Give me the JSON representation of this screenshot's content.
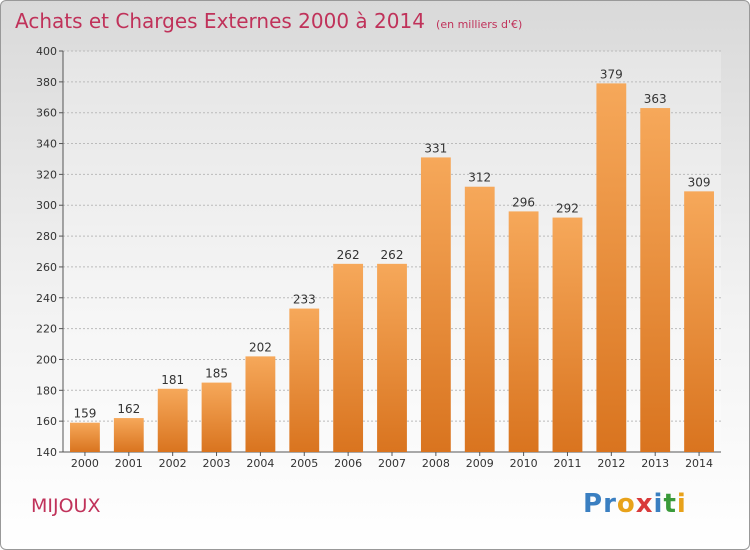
{
  "title": "Achats et Charges Externes 2000 à 2014",
  "subtitle": "(en milliers d'€)",
  "commune": "MIJOUX",
  "logo": {
    "text": "Proxiti",
    "letters": [
      {
        "ch": "P",
        "color": "#3a7fc1"
      },
      {
        "ch": "r",
        "color": "#3a7fc1"
      },
      {
        "ch": "o",
        "color": "#e8a21a"
      },
      {
        "ch": "x",
        "color": "#d93a3a"
      },
      {
        "ch": "i",
        "color": "#3a7fc1"
      },
      {
        "ch": "t",
        "color": "#3a9a3a"
      },
      {
        "ch": "i",
        "color": "#e8a21a"
      }
    ]
  },
  "colors": {
    "title": "#c0325a",
    "bar_light": "#f6a85a",
    "bar_dark": "#d9741f",
    "grid": "#bbbbbb"
  },
  "chart_data": {
    "type": "bar",
    "title": "Achats et Charges Externes 2000 à 2014",
    "ylabel": "en milliers d'€",
    "xlabel": "",
    "categories": [
      "2000",
      "2001",
      "2002",
      "2003",
      "2004",
      "2005",
      "2006",
      "2007",
      "2008",
      "2009",
      "2010",
      "2011",
      "2012",
      "2013",
      "2014"
    ],
    "values": [
      159,
      162,
      181,
      185,
      202,
      233,
      262,
      262,
      331,
      312,
      296,
      292,
      379,
      363,
      309
    ],
    "ylim": [
      140,
      400
    ],
    "yticks": [
      140,
      160,
      180,
      200,
      220,
      240,
      260,
      280,
      300,
      320,
      340,
      360,
      380,
      400
    ],
    "grid": true
  }
}
